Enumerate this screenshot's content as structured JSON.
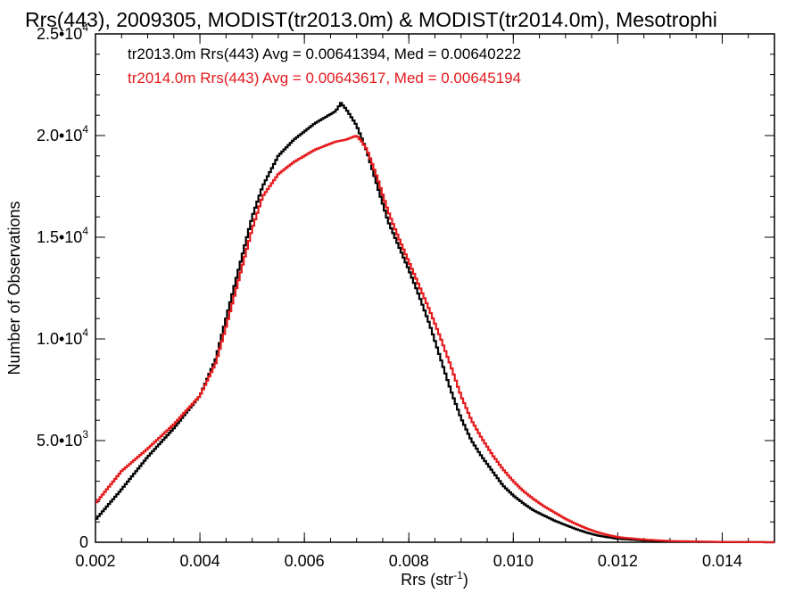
{
  "chart_data": {
    "type": "line",
    "title": "Rrs(443), 2009305, MODIST(tr2013.0m) & MODIST(tr2014.0m), Mesotrophi",
    "xlabel": "Rrs (str",
    "xlabel_sup": "-1",
    "xlabel_close": ")",
    "ylabel": "Number of Observations",
    "xlim": [
      0.002,
      0.015
    ],
    "ylim": [
      0,
      25000
    ],
    "xticks": [
      {
        "value": 0.002,
        "label": "0.002"
      },
      {
        "value": 0.004,
        "label": "0.004"
      },
      {
        "value": 0.006,
        "label": "0.006"
      },
      {
        "value": 0.008,
        "label": "0.008"
      },
      {
        "value": 0.01,
        "label": "0.010"
      },
      {
        "value": 0.012,
        "label": "0.012"
      },
      {
        "value": 0.014,
        "label": "0.014"
      }
    ],
    "yticks": [
      {
        "value": 0,
        "mant": "0",
        "exp": ""
      },
      {
        "value": 5000,
        "mant": "5.0•10",
        "exp": "3"
      },
      {
        "value": 10000,
        "mant": "1.0•10",
        "exp": "4"
      },
      {
        "value": 15000,
        "mant": "1.5•10",
        "exp": "4"
      },
      {
        "value": 20000,
        "mant": "2.0•10",
        "exp": "4"
      },
      {
        "value": 25000,
        "mant": "2.5•10",
        "exp": "4"
      }
    ],
    "legend": [
      {
        "text": "tr2013.0m Rrs(443) Avg = 0.00641394, Med = 0.00640222",
        "color": "#000000"
      },
      {
        "text": "tr2014.0m Rrs(443) Avg = 0.00643617, Med = 0.00645194",
        "color": "#e41a1c"
      }
    ],
    "series": [
      {
        "color": "#000000",
        "x": [
          0.002,
          0.0025,
          0.003,
          0.0035,
          0.004,
          0.0043,
          0.0045,
          0.0047,
          0.005,
          0.0052,
          0.0055,
          0.0058,
          0.006,
          0.0062,
          0.0064,
          0.0066,
          0.0067,
          0.0068,
          0.007,
          0.0072,
          0.0074,
          0.0076,
          0.0078,
          0.008,
          0.0082,
          0.0084,
          0.0086,
          0.0088,
          0.009,
          0.0092,
          0.0094,
          0.0096,
          0.0098,
          0.01,
          0.0102,
          0.0104,
          0.0106,
          0.0108,
          0.011,
          0.0112,
          0.0114,
          0.0116,
          0.0118,
          0.012,
          0.0125,
          0.013,
          0.014,
          0.015
        ],
        "y": [
          1100,
          2600,
          4200,
          5600,
          7200,
          9000,
          11000,
          13000,
          16000,
          17500,
          19000,
          19800,
          20200,
          20600,
          20900,
          21200,
          21600,
          21300,
          20500,
          19200,
          17500,
          15800,
          14600,
          13400,
          12100,
          10700,
          9100,
          7500,
          6100,
          5000,
          4200,
          3500,
          2800,
          2300,
          1900,
          1550,
          1300,
          1050,
          850,
          650,
          480,
          340,
          250,
          170,
          90,
          40,
          10,
          0
        ]
      },
      {
        "color": "#e41a1c",
        "x": [
          0.002,
          0.0025,
          0.003,
          0.0035,
          0.004,
          0.0043,
          0.0045,
          0.0047,
          0.005,
          0.0052,
          0.0055,
          0.0058,
          0.006,
          0.0062,
          0.0064,
          0.0066,
          0.0068,
          0.007,
          0.0071,
          0.0072,
          0.0074,
          0.0076,
          0.0078,
          0.008,
          0.0082,
          0.0084,
          0.0086,
          0.0088,
          0.009,
          0.0092,
          0.0094,
          0.0096,
          0.0098,
          0.01,
          0.0102,
          0.0104,
          0.0106,
          0.0108,
          0.011,
          0.0112,
          0.0114,
          0.0116,
          0.0118,
          0.012,
          0.0125,
          0.013,
          0.014,
          0.015
        ],
        "y": [
          1900,
          3500,
          4600,
          5800,
          7200,
          8800,
          10600,
          12500,
          15400,
          17000,
          18100,
          18700,
          19000,
          19300,
          19500,
          19700,
          19800,
          20000,
          19700,
          19300,
          17900,
          16300,
          15000,
          13800,
          12600,
          11400,
          10100,
          8700,
          7200,
          6000,
          5100,
          4300,
          3600,
          3000,
          2500,
          2100,
          1750,
          1450,
          1150,
          900,
          680,
          500,
          360,
          250,
          130,
          60,
          15,
          0
        ]
      }
    ]
  }
}
